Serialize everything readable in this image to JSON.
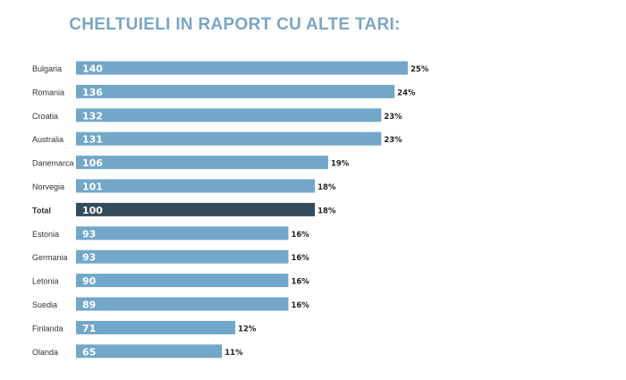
{
  "chart_data": {
    "type": "bar",
    "orientation": "horizontal",
    "title": "CHELTUIELI IN RAPORT CU ALTE TARI:",
    "categories": [
      "Bulgaria",
      "Romania",
      "Croatia",
      "Australia",
      "Danemarca",
      "Norvegia",
      "Total",
      "Estonia",
      "Germania",
      "Letonia",
      "Suedia",
      "Finlanda",
      "Olanda"
    ],
    "values": [
      140,
      136,
      132,
      131,
      106,
      101,
      100,
      93,
      93,
      90,
      89,
      71,
      65
    ],
    "percent_labels": [
      "25%",
      "24%",
      "23%",
      "23%",
      "19%",
      "18%",
      "18%",
      "16%",
      "16%",
      "16%",
      "16%",
      "12%",
      "11%"
    ],
    "percents": [
      25,
      24,
      23,
      23,
      19,
      18,
      18,
      16,
      16,
      16,
      16,
      12,
      11
    ],
    "highlight": "Total",
    "colors": {
      "bar": "#72a7c9",
      "highlight": "#344b5c",
      "title": "#7aa6c4"
    },
    "grid": false,
    "legend": "none"
  }
}
